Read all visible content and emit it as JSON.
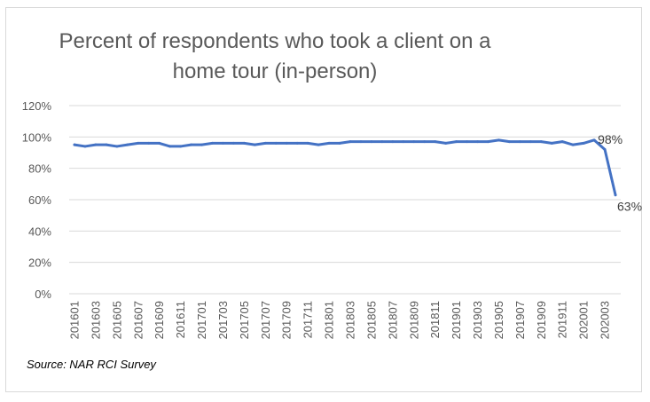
{
  "chart_data": {
    "type": "line",
    "title": "Percent of respondents who took a client on a home tour (in-person)",
    "xlabel": "",
    "ylabel": "",
    "ylim": [
      0,
      120
    ],
    "yticks": [
      "0%",
      "20%",
      "40%",
      "60%",
      "80%",
      "100%",
      "120%"
    ],
    "ytick_values": [
      0,
      20,
      40,
      60,
      80,
      100,
      120
    ],
    "x": [
      "201601",
      "201602",
      "201603",
      "201604",
      "201605",
      "201606",
      "201607",
      "201608",
      "201609",
      "201610",
      "201611",
      "201612",
      "201701",
      "201702",
      "201703",
      "201704",
      "201705",
      "201706",
      "201707",
      "201708",
      "201709",
      "201710",
      "201711",
      "201712",
      "201801",
      "201802",
      "201803",
      "201804",
      "201805",
      "201806",
      "201807",
      "201808",
      "201809",
      "201810",
      "201811",
      "201812",
      "201901",
      "201902",
      "201903",
      "201904",
      "201905",
      "201906",
      "201907",
      "201908",
      "201909",
      "201910",
      "201911",
      "201912",
      "202001",
      "202002",
      "202003",
      "202004"
    ],
    "xtick_labels": [
      "201601",
      "201603",
      "201605",
      "201607",
      "201609",
      "201611",
      "201701",
      "201703",
      "201705",
      "201707",
      "201709",
      "201711",
      "201801",
      "201803",
      "201805",
      "201807",
      "201809",
      "201811",
      "201901",
      "201903",
      "201905",
      "201907",
      "201909",
      "201911",
      "202001",
      "202003"
    ],
    "series": [
      {
        "name": "Percent of respondents",
        "color": "#4472C4",
        "values": [
          95,
          94,
          95,
          95,
          94,
          95,
          96,
          96,
          96,
          94,
          94,
          95,
          95,
          96,
          96,
          96,
          96,
          95,
          96,
          96,
          96,
          96,
          96,
          95,
          96,
          96,
          97,
          97,
          97,
          97,
          97,
          97,
          97,
          97,
          97,
          96,
          97,
          97,
          97,
          97,
          98,
          97,
          97,
          97,
          97,
          96,
          97,
          95,
          96,
          98,
          92,
          63
        ]
      }
    ],
    "annotations": [
      {
        "label": "98%",
        "index": 49
      },
      {
        "label": "63%",
        "index": 51
      }
    ],
    "source": "Source: NAR RCI Survey",
    "grid": true,
    "legend": "none"
  }
}
